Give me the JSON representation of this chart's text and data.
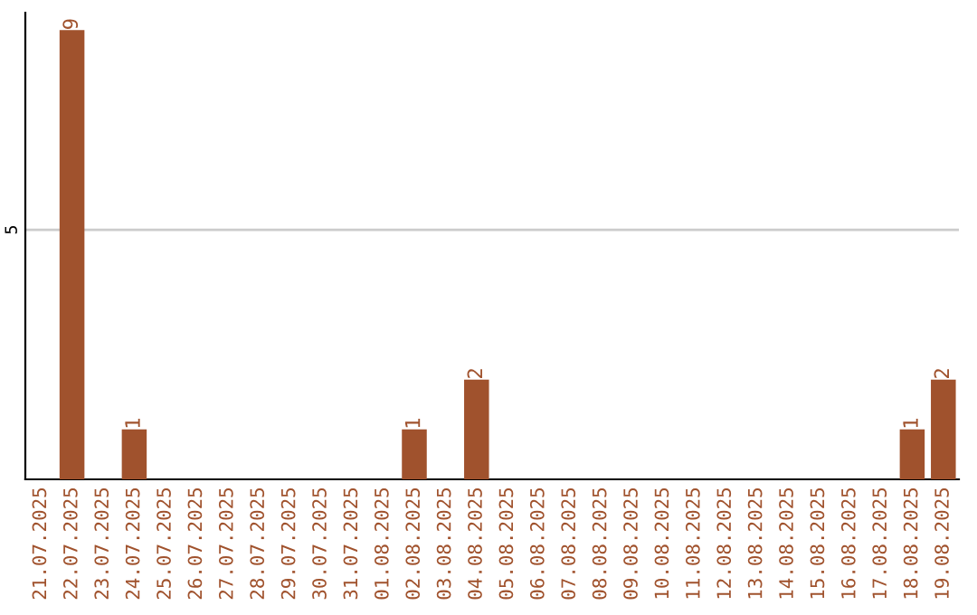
{
  "chart_data": {
    "type": "bar",
    "categories": [
      "21.07.2025",
      "22.07.2025",
      "23.07.2025",
      "24.07.2025",
      "25.07.2025",
      "26.07.2025",
      "27.07.2025",
      "28.07.2025",
      "29.07.2025",
      "30.07.2025",
      "31.07.2025",
      "01.08.2025",
      "02.08.2025",
      "03.08.2025",
      "04.08.2025",
      "05.08.2025",
      "06.08.2025",
      "07.08.2025",
      "08.08.2025",
      "09.08.2025",
      "10.08.2025",
      "11.08.2025",
      "12.08.2025",
      "13.08.2025",
      "14.08.2025",
      "15.08.2025",
      "16.08.2025",
      "17.08.2025",
      "18.08.2025",
      "19.08.2025"
    ],
    "values": [
      0,
      9,
      0,
      1,
      0,
      0,
      0,
      0,
      0,
      0,
      0,
      0,
      1,
      0,
      2,
      0,
      0,
      0,
      0,
      0,
      0,
      0,
      0,
      0,
      0,
      0,
      0,
      0,
      1,
      2
    ],
    "value_labels": [
      null,
      "9",
      null,
      "1",
      null,
      null,
      null,
      null,
      null,
      null,
      null,
      null,
      "1",
      null,
      "2",
      null,
      null,
      null,
      null,
      null,
      null,
      null,
      null,
      null,
      null,
      null,
      null,
      null,
      "1",
      "2"
    ],
    "color": "#a0522d",
    "ylim": [
      0,
      9.35
    ],
    "yticks": [
      5
    ],
    "grid": "y"
  }
}
